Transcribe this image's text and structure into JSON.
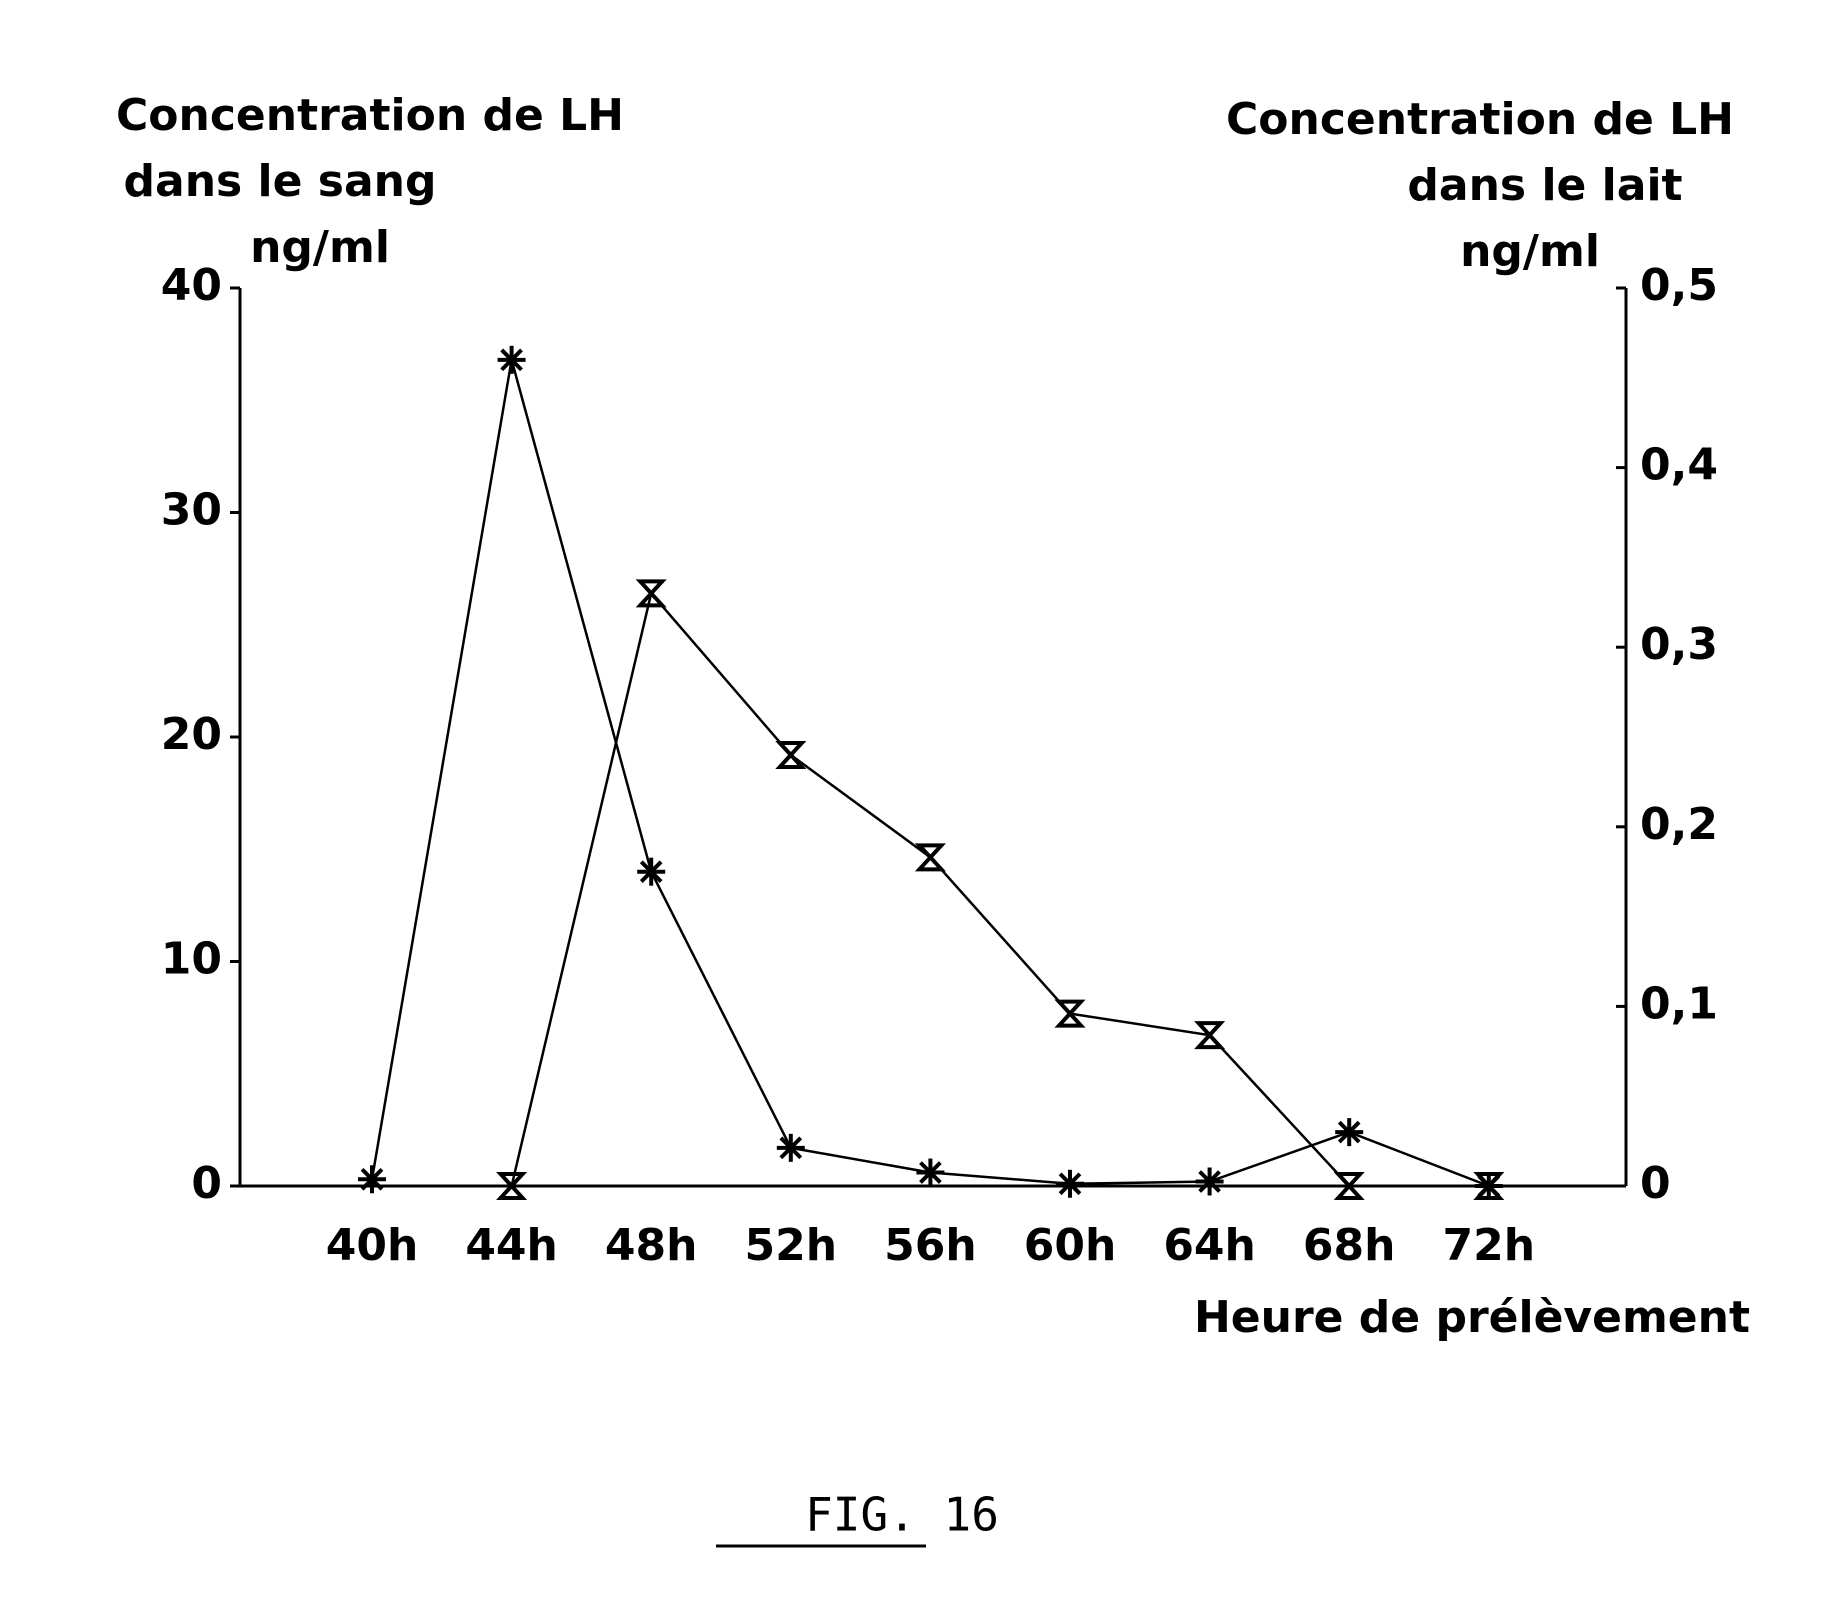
{
  "chart_data": {
    "type": "line",
    "y_title": [
      "Concentration de LH",
      "dans le sang",
      "ng/ml"
    ],
    "y2_title": [
      "Concentration de LH",
      "dans le lait",
      "ng/ml"
    ],
    "x_title": "Heure de prélèvement",
    "caption": "FIG. 16",
    "categories": [
      "40h",
      "44h",
      "48h",
      "52h",
      "56h",
      "60h",
      "64h",
      "68h",
      "72h"
    ],
    "series": [
      {
        "marker": "star",
        "color": "#000000",
        "values": [
          0.3,
          36.8,
          14,
          1.7,
          0.6,
          0.1,
          0.2,
          2.4,
          0
        ]
      },
      {
        "marker": "hourglass",
        "color": "#000000",
        "axis": "y2",
        "values": [
          null,
          0,
          0.33,
          0.24,
          0.183,
          0.096,
          0.084,
          0,
          0
        ]
      }
    ],
    "ylim": [
      0,
      40
    ],
    "yticks": [
      0,
      10,
      20,
      30,
      40
    ],
    "y2lim": [
      0,
      0.5
    ],
    "y2ticks": [
      0,
      {
        "value": 0.1,
        "label": "0,1"
      },
      {
        "value": 0.2,
        "label": "0,2"
      },
      {
        "value": 0.3,
        "label": "0,3"
      },
      {
        "value": 0.4,
        "label": "0,4"
      },
      {
        "value": 0.5,
        "label": "0,5"
      }
    ]
  }
}
